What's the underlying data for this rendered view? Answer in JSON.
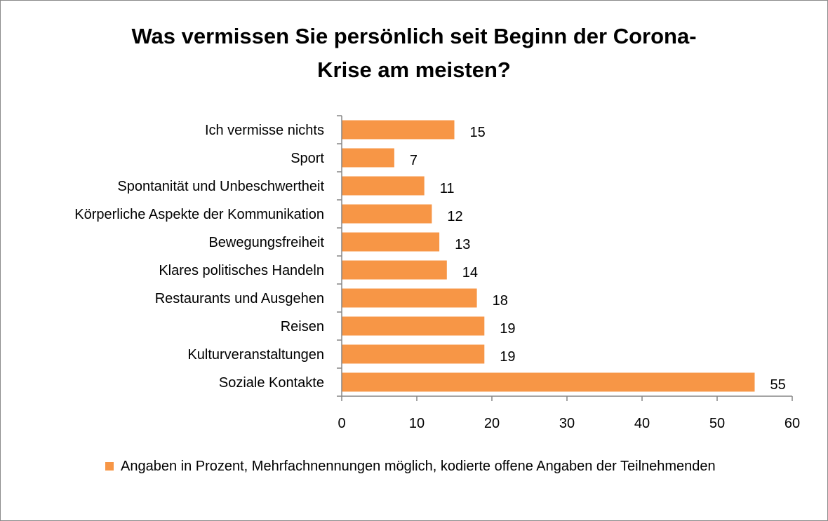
{
  "title_line1": "Was vermissen Sie persönlich seit Beginn der Corona-",
  "title_line2": "Krise am meisten?",
  "legend_label": "Angaben in Prozent, Mehrfachnennungen möglich, kodierte offene Angaben der Teilnehmenden",
  "colors": {
    "bar": "#f79646",
    "axis": "#868686",
    "frame": "#8a8a8a"
  },
  "chart_data": {
    "type": "bar",
    "orientation": "horizontal",
    "title": "Was vermissen Sie persönlich seit Beginn der Corona-Krise am meisten?",
    "categories": [
      "Ich vermisse nichts",
      "Sport",
      "Spontanität und Unbeschwertheit",
      "Körperliche Aspekte der Kommunikation",
      "Bewegungsfreiheit",
      "Klares politisches Handeln",
      "Restaurants und Ausgehen",
      "Reisen",
      "Kulturveranstaltungen",
      "Soziale Kontakte"
    ],
    "series": [
      {
        "name": "Angaben in Prozent, Mehrfachnennungen möglich, kodierte offene Angaben der Teilnehmenden",
        "values": [
          15,
          7,
          11,
          12,
          13,
          14,
          18,
          19,
          19,
          55
        ]
      }
    ],
    "xlim": [
      0,
      60
    ],
    "xticks": [
      0,
      10,
      20,
      30,
      40,
      50,
      60
    ],
    "data_labels": true,
    "grid": false,
    "legend_position": "bottom"
  }
}
